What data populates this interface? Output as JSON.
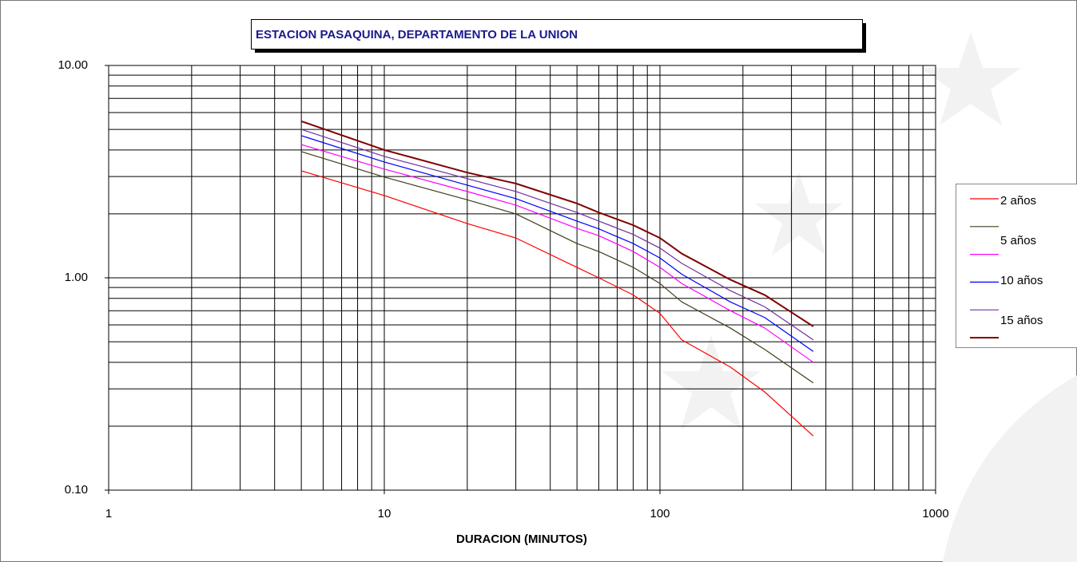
{
  "chart_data": {
    "type": "line",
    "title": "ESTACION PASAQUINA, DEPARTAMENTO DE LA UNION",
    "x_label": "DURACION (MINUTOS)",
    "x": [
      5,
      10,
      20,
      30,
      50,
      60,
      80,
      100,
      120,
      180,
      240,
      360
    ],
    "series": [
      {
        "name": "2 años",
        "color": "#ff0000",
        "values": [
          3.19,
          2.44,
          1.8,
          1.54,
          1.12,
          1.0,
          0.83,
          0.68,
          0.51,
          0.38,
          0.29,
          0.18
        ]
      },
      {
        "name": "5 años",
        "color": "#3f3f1f",
        "values": [
          3.93,
          2.98,
          2.33,
          2.0,
          1.45,
          1.33,
          1.12,
          0.94,
          0.77,
          0.58,
          0.46,
          0.32
        ]
      },
      {
        "name": null,
        "color": "#ff00ff",
        "values": [
          4.24,
          3.25,
          2.55,
          2.2,
          1.71,
          1.58,
          1.33,
          1.12,
          0.94,
          0.7,
          0.58,
          0.4
        ]
      },
      {
        "name": "10 años",
        "color": "#0000ff",
        "values": [
          4.67,
          3.51,
          2.73,
          2.36,
          1.85,
          1.7,
          1.45,
          1.24,
          1.04,
          0.77,
          0.65,
          0.45
        ]
      },
      {
        "name": null,
        "color": "#7030a0",
        "values": [
          5.0,
          3.73,
          2.93,
          2.55,
          2.03,
          1.85,
          1.6,
          1.38,
          1.17,
          0.87,
          0.73,
          0.51
        ]
      },
      {
        "name": "15 años",
        "color": "#800000",
        "values": [
          5.46,
          4.0,
          3.13,
          2.78,
          2.24,
          2.03,
          1.77,
          1.54,
          1.3,
          0.98,
          0.83,
          0.59
        ]
      }
    ],
    "xscale": "log",
    "yscale": "log",
    "xlim": [
      1,
      1000
    ],
    "xticks": [
      1,
      10,
      100,
      1000
    ],
    "xminor": [
      2,
      3,
      4,
      5,
      6,
      7,
      8,
      9,
      20,
      30,
      40,
      50,
      60,
      70,
      80,
      90,
      200,
      300,
      400,
      500,
      600,
      700,
      800,
      900
    ],
    "ylim": [
      0.1,
      10
    ],
    "yticks": [
      {
        "value": 0.1,
        "label": "0.10"
      },
      {
        "value": 1,
        "label": "1.00"
      },
      {
        "value": 10,
        "label": "10.00"
      }
    ],
    "yminor": [
      0.2,
      0.3,
      0.4,
      0.5,
      0.6,
      0.7,
      0.8,
      0.9,
      2,
      3,
      4,
      5,
      6,
      7,
      8,
      9
    ],
    "grid": true,
    "legend": "right"
  }
}
